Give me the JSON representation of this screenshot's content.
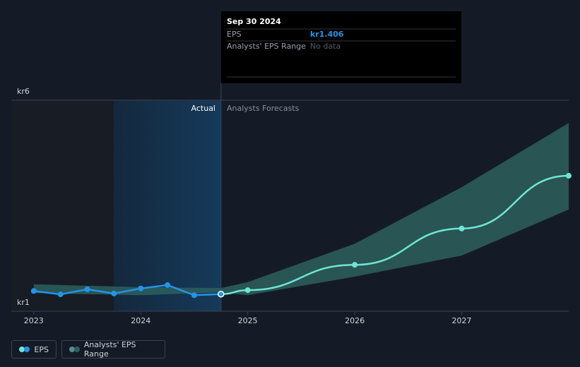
{
  "chart_data": {
    "type": "line",
    "ylim": [
      1,
      6
    ],
    "yticks": [
      {
        "value": 1,
        "label": "kr1"
      },
      {
        "value": 6,
        "label": "kr6"
      }
    ],
    "xlim": [
      2022.79,
      2028
    ],
    "xticks": [
      2023,
      2024,
      2025,
      2026,
      2027
    ],
    "grid": true,
    "series": [
      {
        "name": "EPS",
        "color": "#2394e7",
        "x": [
          2023,
          2023.25,
          2023.5,
          2023.75,
          2024,
          2024.25,
          2024.5,
          2024.75
        ],
        "values": [
          1.48,
          1.4,
          1.52,
          1.42,
          1.54,
          1.62,
          1.38,
          1.406
        ]
      },
      {
        "color": "#6ee6d3",
        "x": [
          2024.75,
          2025,
          2026,
          2027,
          2028
        ],
        "values": [
          1.406,
          1.5,
          2.1,
          2.96,
          4.21
        ]
      }
    ],
    "range": {
      "name": "Analysts' EPS Range",
      "color": "#2d5f5e",
      "x": [
        2023,
        2024,
        2024.75,
        2025,
        2026,
        2027,
        2028
      ],
      "low": [
        1.43,
        1.38,
        1.45,
        1.38,
        1.82,
        2.32,
        3.41
      ],
      "high": [
        1.64,
        1.57,
        1.55,
        1.69,
        2.6,
        3.94,
        5.46
      ]
    },
    "annotations": {
      "actual": "Actual",
      "forecast": "Analysts Forecasts"
    },
    "tooltip": {
      "date": "Sep 30 2024",
      "eps_label": "EPS",
      "eps_value": 1.406,
      "eps_value_label": "kr1.406",
      "range_label": "Analysts' EPS Range",
      "range_value": "No data"
    }
  }
}
